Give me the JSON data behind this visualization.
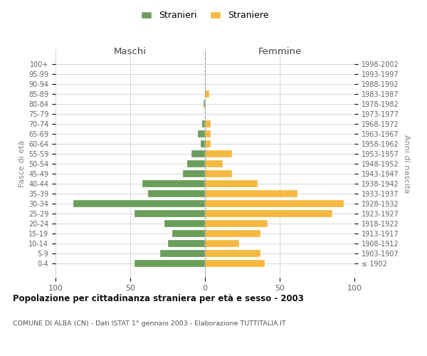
{
  "age_groups": [
    "100+",
    "95-99",
    "90-94",
    "85-89",
    "80-84",
    "75-79",
    "70-74",
    "65-69",
    "60-64",
    "55-59",
    "50-54",
    "45-49",
    "40-44",
    "35-39",
    "30-34",
    "25-29",
    "20-24",
    "15-19",
    "10-14",
    "5-9",
    "0-4"
  ],
  "birth_years": [
    "≤ 1902",
    "1903-1907",
    "1908-1912",
    "1913-1917",
    "1918-1922",
    "1923-1927",
    "1928-1932",
    "1933-1937",
    "1938-1942",
    "1943-1947",
    "1948-1952",
    "1953-1957",
    "1958-1962",
    "1963-1967",
    "1968-1972",
    "1973-1977",
    "1978-1982",
    "1983-1987",
    "1988-1992",
    "1993-1997",
    "1998-2002"
  ],
  "maschi": [
    0,
    0,
    0,
    0,
    1,
    0,
    2,
    5,
    3,
    9,
    12,
    15,
    42,
    38,
    88,
    47,
    27,
    22,
    25,
    30,
    47
  ],
  "femmine": [
    0,
    0,
    0,
    3,
    0,
    0,
    4,
    4,
    4,
    18,
    12,
    18,
    35,
    62,
    93,
    85,
    42,
    37,
    23,
    37,
    40
  ],
  "color_maschi": "#6a9e5a",
  "color_femmine": "#f5b942",
  "title": "Popolazione per cittadinanza straniera per età e sesso - 2003",
  "subtitle": "COMUNE DI ALBA (CN) - Dati ISTAT 1° gennaio 2003 - Elaborazione TUTTITALIA.IT",
  "xlabel_left": "Maschi",
  "xlabel_right": "Femmine",
  "ylabel_left": "Fasce di età",
  "ylabel_right": "Anni di nascita",
  "legend_maschi": "Stranieri",
  "legend_femmine": "Straniere",
  "xlim": 100,
  "background_color": "#ffffff",
  "grid_color": "#d0d0d0"
}
